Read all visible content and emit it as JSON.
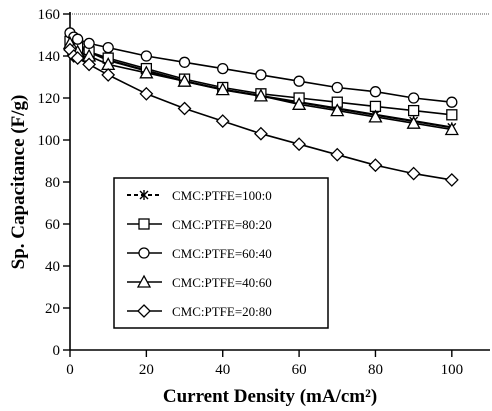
{
  "chart_data": {
    "type": "line",
    "xlabel": "Current Density (mA/cm²)",
    "ylabel": "Sp. Capacitance (F/g)",
    "xlim": [
      0,
      110
    ],
    "ylim": [
      0,
      160
    ],
    "xticks": [
      0,
      20,
      40,
      60,
      80,
      100
    ],
    "yticks": [
      0,
      20,
      40,
      60,
      80,
      100,
      120,
      140,
      160
    ],
    "grid": false,
    "legend_position": "lower-left",
    "x": [
      0,
      1,
      2,
      5,
      10,
      20,
      30,
      40,
      50,
      60,
      70,
      80,
      90,
      100
    ],
    "series": [
      {
        "name": "CMC:PTFE=100:0",
        "marker": "asterisk",
        "values": [
          150,
          146,
          145,
          142,
          138,
          133,
          128,
          124,
          121,
          118,
          115,
          112,
          109,
          106
        ]
      },
      {
        "name": "CMC:PTFE=80:20",
        "marker": "square",
        "values": [
          147,
          145,
          144,
          142,
          139,
          134,
          129,
          125,
          122,
          120,
          118,
          116,
          114,
          112
        ]
      },
      {
        "name": "CMC:PTFE=60:40",
        "marker": "circle",
        "values": [
          151,
          149,
          148,
          146,
          144,
          140,
          137,
          134,
          131,
          128,
          125,
          123,
          120,
          118
        ]
      },
      {
        "name": "CMC:PTFE=40:60",
        "marker": "triangle",
        "values": [
          146,
          143,
          142,
          140,
          136,
          132,
          128,
          124,
          121,
          117,
          114,
          111,
          108,
          105
        ]
      },
      {
        "name": "CMC:PTFE=20:80",
        "marker": "diamond",
        "values": [
          143,
          140,
          139,
          136,
          131,
          122,
          115,
          109,
          103,
          98,
          93,
          88,
          84,
          81
        ]
      }
    ]
  }
}
